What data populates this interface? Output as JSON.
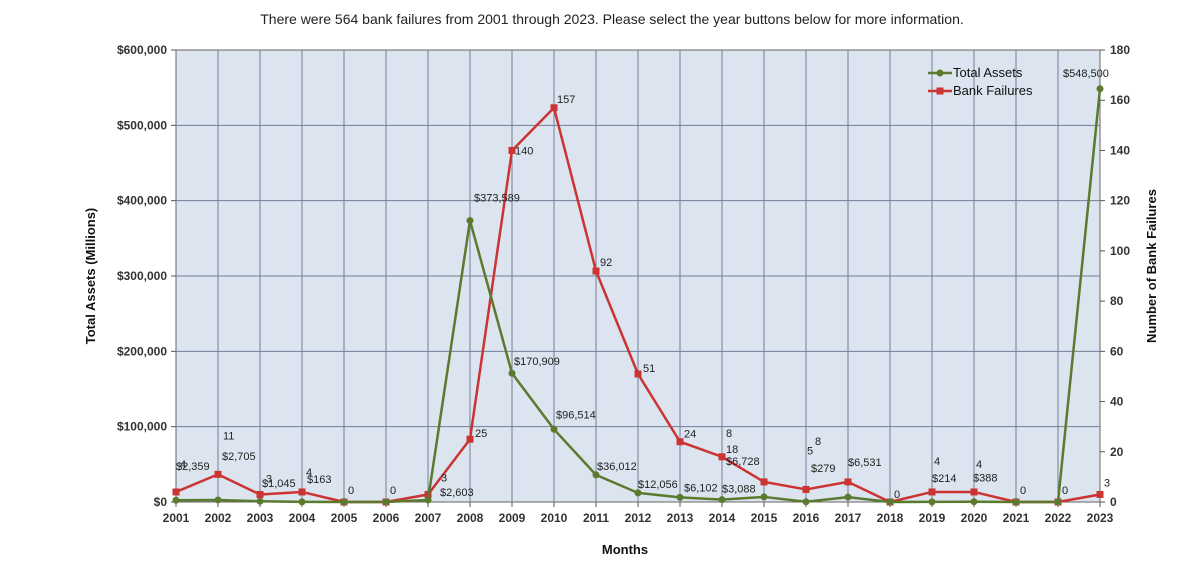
{
  "caption": "There were 564 bank failures from 2001 through 2023. Please select the year buttons below for more information.",
  "chart_data": {
    "type": "line",
    "xlabel": "Months",
    "ylabel_left": "Total Assets (Millions)",
    "ylabel_right": "Number of Bank Failures",
    "categories": [
      "2001",
      "2002",
      "2003",
      "2004",
      "2005",
      "2006",
      "2007",
      "2008",
      "2009",
      "2010",
      "2011",
      "2012",
      "2013",
      "2014",
      "2015",
      "2016",
      "2017",
      "2018",
      "2019",
      "2020",
      "2021",
      "2022",
      "2023"
    ],
    "y_left": {
      "min": 0,
      "max": 600000,
      "ticks": [
        "$0",
        "$100,000",
        "$200,000",
        "$300,000",
        "$400,000",
        "$500,000",
        "$600,000"
      ]
    },
    "y_right": {
      "min": 0,
      "max": 180,
      "ticks": [
        "0",
        "20",
        "40",
        "60",
        "80",
        "100",
        "120",
        "140",
        "160",
        "180"
      ]
    },
    "grid": true,
    "legend_position": "top-right",
    "series": [
      {
        "name": "Total Assets",
        "axis": "left",
        "color": "#5a7a2e",
        "values": [
          2359,
          2705,
          1045,
          163,
          0,
          0,
          2603,
          373589,
          170909,
          96514,
          36012,
          12056,
          6102,
          3088,
          6728,
          279,
          6531,
          0,
          214,
          388,
          0,
          0,
          548500
        ],
        "labels": [
          "$2,359",
          "$2,705",
          "$1,045",
          "$163",
          "",
          "",
          "$2,603",
          "$373,589",
          "$170,909",
          "$96,514",
          "$36,012",
          "$12,056",
          "$6,102",
          "$3,088",
          "$6,728",
          "$279",
          "$6,531",
          "",
          "$214",
          "$388",
          "",
          "",
          "$548,500"
        ]
      },
      {
        "name": "Bank Failures",
        "axis": "right",
        "color": "#cc3333",
        "values": [
          4,
          11,
          3,
          4,
          0,
          0,
          3,
          25,
          140,
          157,
          92,
          51,
          24,
          18,
          8,
          5,
          8,
          0,
          4,
          4,
          0,
          0,
          3
        ],
        "labels": [
          "4",
          "11",
          "3",
          "4",
          "0",
          "0",
          "3",
          "25",
          "140",
          "157",
          "92",
          "51",
          "24",
          "18",
          "8",
          "5",
          "8",
          "0",
          "4",
          "4",
          "0",
          "0",
          "3"
        ]
      }
    ]
  }
}
